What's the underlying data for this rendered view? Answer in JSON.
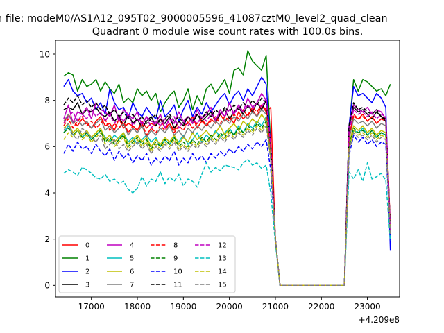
{
  "suptitle": "n file: modeM0/AS1A12_095T02_9000005596_41087cztM0_level2_quad_clean",
  "chart_data": {
    "type": "line",
    "title": "Quadrant 0 module wise count rates with 100.0s bins.",
    "xlabel": "",
    "ylabel": "",
    "x_offset_label": "+4.209e8",
    "xlim": [
      16220,
      23700
    ],
    "ylim": [
      -0.5,
      10.6
    ],
    "xticks": [
      17000,
      18000,
      19000,
      20000,
      21000,
      22000,
      23000
    ],
    "xtick_labels": [
      "17000",
      "18000",
      "19000",
      "20000",
      "21000",
      "22000",
      "23000"
    ],
    "yticks": [
      0,
      2,
      4,
      6,
      8,
      10
    ],
    "ytick_labels": [
      "0",
      "2",
      "4",
      "6",
      "8",
      "10"
    ],
    "grid": false,
    "legend_position": "lower-left",
    "x_seg1": [
      16400,
      16500,
      16600,
      16700,
      16800,
      16900,
      17000,
      17100,
      17200,
      17300,
      17400,
      17500,
      17600,
      17700,
      17800,
      17900,
      18000,
      18100,
      18200,
      18300,
      18400,
      18500,
      18600,
      18700,
      18800,
      18900,
      19000,
      19100,
      19200,
      19300,
      19400,
      19500,
      19600,
      19700,
      19800,
      19900,
      20000,
      20100,
      20200,
      20300,
      20400,
      20500,
      20600,
      20700,
      20800,
      20900,
      21000,
      21100
    ],
    "x_seg2": [
      22500,
      22600,
      22700,
      22800,
      22900,
      23000,
      23100,
      23200,
      23300,
      23400,
      23500
    ],
    "series": [
      {
        "name": "0",
        "color": "#ff0000",
        "dash": "solid",
        "values": [
          7.0,
          7.4,
          7.1,
          6.9,
          7.2,
          7.0,
          6.8,
          7.1,
          7.3,
          6.9,
          7.0,
          6.7,
          7.2,
          6.8,
          7.0,
          6.9,
          6.7,
          7.1,
          6.8,
          7.0,
          6.9,
          7.2,
          6.8,
          7.0,
          6.7,
          7.1,
          6.9,
          7.0,
          7.3,
          6.8,
          7.1,
          6.9,
          7.2,
          7.0,
          7.4,
          7.1,
          7.3,
          7.0,
          7.5,
          7.2,
          7.4,
          7.6,
          7.3,
          7.8,
          7.5,
          7.7,
          2.0,
          0
        ],
        "values2": [
          0,
          6.5,
          7.3,
          7.2,
          7.4,
          7.1,
          7.3,
          7.0,
          7.2,
          7.3,
          2.6
        ]
      },
      {
        "name": "1",
        "color": "#008000",
        "dash": "solid",
        "values": [
          9.05,
          9.2,
          9.1,
          8.4,
          8.9,
          8.6,
          8.7,
          8.9,
          8.4,
          8.8,
          8.5,
          8.3,
          8.7,
          7.9,
          8.1,
          7.9,
          8.5,
          8.2,
          8.4,
          8.0,
          8.3,
          7.5,
          7.9,
          8.2,
          8.4,
          7.7,
          8.0,
          8.5,
          7.6,
          8.2,
          7.8,
          8.5,
          8.7,
          8.3,
          8.6,
          8.9,
          8.3,
          9.3,
          9.4,
          9.1,
          10.15,
          9.7,
          9.5,
          9.3,
          9.95,
          6.0,
          2.0,
          0
        ],
        "values2": [
          0,
          6.8,
          8.9,
          8.4,
          8.9,
          8.8,
          8.6,
          8.4,
          8.5,
          8.2,
          8.7
        ]
      },
      {
        "name": "2",
        "color": "#0000ff",
        "dash": "solid",
        "values": [
          8.6,
          8.9,
          8.4,
          8.2,
          8.3,
          7.9,
          8.1,
          7.6,
          7.9,
          7.4,
          8.5,
          7.9,
          7.6,
          7.7,
          7.2,
          7.9,
          7.5,
          7.3,
          7.7,
          7.4,
          7.2,
          8.0,
          7.3,
          7.5,
          7.8,
          7.1,
          7.6,
          8.0,
          7.3,
          7.7,
          7.4,
          7.9,
          7.5,
          7.8,
          8.1,
          8.3,
          7.8,
          8.2,
          8.4,
          8.0,
          8.5,
          8.2,
          8.6,
          9.0,
          8.7,
          6.0,
          2.0,
          0
        ],
        "values2": [
          0,
          6.9,
          8.6,
          8.2,
          8.3,
          8.1,
          7.9,
          8.3,
          8.1,
          7.7,
          1.5
        ]
      },
      {
        "name": "3",
        "color": "#000000",
        "dash": "solid",
        "values": [
          7.6,
          7.7,
          7.6,
          7.9,
          7.4,
          7.6,
          7.5,
          7.7,
          7.4,
          7.3,
          7.5,
          7.1,
          7.3,
          6.9,
          7.4,
          7.0,
          7.2,
          6.8,
          7.1,
          7.3,
          6.9,
          7.2,
          7.0,
          7.3,
          6.8,
          7.1,
          6.9,
          7.3,
          7.0,
          7.4,
          7.1,
          7.3,
          7.5,
          7.1,
          7.4,
          7.6,
          7.2,
          7.5,
          7.7,
          7.4,
          7.8,
          7.5,
          7.9,
          7.6,
          8.0,
          6.0,
          2.0,
          0
        ],
        "values2": [
          0,
          6.8,
          7.7,
          7.5,
          7.6,
          7.4,
          7.2,
          7.5,
          7.3,
          7.1,
          2.5
        ]
      },
      {
        "name": "4",
        "color": "#bf00bf",
        "dash": "solid",
        "values": [
          7.2,
          7.8,
          7.0,
          7.5,
          7.4,
          7.7,
          7.2,
          7.9,
          7.6,
          7.5,
          7.3,
          7.8,
          7.1,
          7.6,
          7.4,
          7.2,
          7.5,
          6.9,
          7.3,
          7.1,
          7.0,
          7.4,
          6.8,
          7.2,
          7.0,
          7.5,
          7.1,
          7.3,
          7.0,
          7.6,
          7.2,
          7.4,
          7.7,
          7.1,
          7.6,
          7.3,
          7.9,
          7.4,
          7.8,
          7.5,
          8.1,
          7.7,
          7.9,
          8.3,
          8.0,
          6.0,
          2.0,
          0
        ],
        "values2": [
          0,
          6.9,
          7.8,
          7.6,
          7.5,
          7.7,
          7.4,
          7.6,
          7.5,
          7.2,
          2.4
        ]
      },
      {
        "name": "5",
        "color": "#00bfbf",
        "dash": "solid",
        "values": [
          6.6,
          6.9,
          6.5,
          6.7,
          6.4,
          6.6,
          6.3,
          6.5,
          6.7,
          6.4,
          6.2,
          6.5,
          6.3,
          6.6,
          6.2,
          6.4,
          6.1,
          6.3,
          6.5,
          6.2,
          6.4,
          6.0,
          6.3,
          6.1,
          6.4,
          6.2,
          6.5,
          6.1,
          6.3,
          6.6,
          6.2,
          6.5,
          6.3,
          6.7,
          6.4,
          6.6,
          6.8,
          6.5,
          6.9,
          6.6,
          7.0,
          6.8,
          7.1,
          6.9,
          7.3,
          5.5,
          2.0,
          0
        ],
        "values2": [
          0,
          6.0,
          6.7,
          6.6,
          6.8,
          6.5,
          6.7,
          6.4,
          6.6,
          6.5,
          2.2
        ]
      },
      {
        "name": "6",
        "color": "#bfbf00",
        "dash": "solid",
        "values": [
          6.8,
          7.0,
          6.6,
          6.8,
          6.5,
          6.7,
          6.4,
          6.6,
          6.8,
          6.3,
          6.5,
          6.2,
          6.4,
          6.6,
          6.1,
          6.3,
          6.5,
          6.2,
          6.4,
          6.0,
          6.3,
          6.1,
          6.4,
          6.2,
          6.5,
          6.1,
          6.4,
          6.2,
          6.6,
          6.3,
          6.5,
          6.7,
          6.4,
          6.6,
          6.9,
          6.5,
          6.8,
          7.0,
          6.7,
          7.1,
          6.9,
          7.2,
          7.0,
          7.4,
          7.1,
          5.6,
          2.0,
          0
        ],
        "values2": [
          0,
          6.1,
          6.9,
          6.7,
          6.9,
          6.6,
          6.8,
          6.5,
          6.7,
          6.6,
          2.3
        ]
      },
      {
        "name": "7",
        "color": "#7f7f7f",
        "dash": "solid",
        "values": [
          7.1,
          7.4,
          7.0,
          7.2,
          6.9,
          7.1,
          6.8,
          7.0,
          7.2,
          6.7,
          6.9,
          6.6,
          6.8,
          7.0,
          6.5,
          6.8,
          6.6,
          6.9,
          6.4,
          6.7,
          6.5,
          6.8,
          6.6,
          6.9,
          6.5,
          6.7,
          6.4,
          6.8,
          6.6,
          6.9,
          6.7,
          7.0,
          6.8,
          7.1,
          6.9,
          7.2,
          7.0,
          7.3,
          7.1,
          7.4,
          7.2,
          7.5,
          7.3,
          7.6,
          7.4,
          5.8,
          2.0,
          0
        ],
        "values2": [
          0,
          6.3,
          7.2,
          7.0,
          7.1,
          6.9,
          7.1,
          6.8,
          7.0,
          6.9,
          2.4
        ]
      },
      {
        "name": "8",
        "color": "#ff0000",
        "dash": "dashed",
        "values": [
          6.9,
          7.2,
          6.8,
          7.1,
          7.3,
          6.9,
          7.1,
          6.8,
          7.0,
          7.2,
          6.7,
          7.0,
          6.8,
          7.1,
          6.6,
          6.9,
          6.7,
          7.0,
          6.5,
          6.8,
          6.6,
          6.9,
          6.7,
          7.0,
          6.6,
          6.9,
          6.7,
          7.1,
          6.8,
          7.0,
          7.2,
          6.9,
          7.1,
          7.3,
          7.0,
          7.3,
          7.1,
          7.4,
          7.2,
          7.6,
          7.3,
          7.7,
          7.5,
          7.8,
          7.6,
          5.9,
          2.0,
          0
        ],
        "values2": [
          0,
          6.4,
          7.4,
          7.2,
          7.3,
          7.1,
          7.3,
          7.0,
          7.2,
          7.1,
          2.5
        ]
      },
      {
        "name": "9",
        "color": "#008000",
        "dash": "dashed",
        "values": [
          6.6,
          6.8,
          6.5,
          6.7,
          6.4,
          6.6,
          6.3,
          6.5,
          6.7,
          6.2,
          6.4,
          6.1,
          6.3,
          6.5,
          6.0,
          6.2,
          6.4,
          6.1,
          6.3,
          5.9,
          6.2,
          6.0,
          6.3,
          6.1,
          6.4,
          6.0,
          6.2,
          6.0,
          6.3,
          6.1,
          6.4,
          6.2,
          6.5,
          6.3,
          6.6,
          6.4,
          6.7,
          6.5,
          6.8,
          6.6,
          6.9,
          6.7,
          7.0,
          6.8,
          7.1,
          5.5,
          2.0,
          0
        ],
        "values2": [
          0,
          6.0,
          6.8,
          6.6,
          6.7,
          6.5,
          6.7,
          6.4,
          6.6,
          6.5,
          2.2
        ]
      },
      {
        "name": "10",
        "color": "#0000ff",
        "dash": "dashed",
        "values": [
          5.7,
          6.1,
          5.8,
          6.2,
          5.9,
          6.0,
          5.7,
          6.1,
          5.8,
          5.6,
          5.9,
          5.4,
          5.8,
          5.5,
          5.7,
          5.3,
          5.6,
          5.4,
          5.7,
          5.2,
          5.5,
          5.3,
          5.6,
          5.4,
          5.8,
          5.2,
          5.5,
          5.3,
          5.7,
          5.4,
          5.6,
          5.3,
          5.7,
          5.5,
          5.8,
          5.6,
          5.9,
          5.7,
          6.0,
          5.8,
          6.1,
          5.9,
          6.2,
          6.0,
          6.3,
          5.0,
          2.0,
          0
        ],
        "values2": [
          0,
          5.6,
          6.5,
          6.2,
          6.4,
          6.1,
          6.3,
          6.0,
          6.2,
          6.1,
          2.0
        ]
      },
      {
        "name": "11",
        "color": "#000000",
        "dash": "dashed",
        "values": [
          7.8,
          8.1,
          7.9,
          8.2,
          7.8,
          8.0,
          7.7,
          7.9,
          7.6,
          7.8,
          7.4,
          7.6,
          7.3,
          7.5,
          7.2,
          7.4,
          7.1,
          7.3,
          7.0,
          7.2,
          7.4,
          7.0,
          7.2,
          7.4,
          7.1,
          7.3,
          7.0,
          7.3,
          7.1,
          7.4,
          7.2,
          7.5,
          7.3,
          7.6,
          7.4,
          7.7,
          7.5,
          7.8,
          7.6,
          7.9,
          7.7,
          8.0,
          7.8,
          8.1,
          7.9,
          6.1,
          2.0,
          0
        ],
        "values2": [
          0,
          6.9,
          7.9,
          7.6,
          7.7,
          7.5,
          7.4,
          7.6,
          7.3,
          7.2,
          2.5
        ]
      },
      {
        "name": "12",
        "color": "#bf00bf",
        "dash": "dashed",
        "values": [
          7.0,
          7.3,
          7.5,
          7.1,
          7.4,
          7.2,
          7.6,
          7.3,
          7.5,
          7.1,
          7.4,
          7.0,
          7.3,
          7.1,
          7.4,
          6.9,
          7.2,
          7.0,
          7.3,
          6.8,
          7.1,
          6.9,
          7.2,
          7.0,
          7.3,
          6.8,
          7.1,
          6.9,
          7.2,
          7.0,
          7.3,
          7.1,
          7.4,
          7.2,
          7.5,
          7.3,
          7.6,
          7.4,
          7.7,
          7.5,
          7.8,
          7.6,
          7.9,
          7.7,
          8.1,
          6.0,
          2.0,
          0
        ],
        "values2": [
          0,
          6.6,
          7.6,
          7.4,
          7.5,
          7.3,
          7.5,
          7.2,
          7.4,
          7.3,
          2.4
        ]
      },
      {
        "name": "13",
        "color": "#00bfbf",
        "dash": "dashed",
        "values": [
          4.85,
          5.0,
          4.9,
          4.75,
          5.1,
          5.0,
          4.85,
          4.65,
          4.6,
          4.8,
          4.5,
          4.6,
          4.4,
          4.5,
          4.15,
          4.0,
          4.2,
          4.7,
          4.3,
          4.6,
          4.5,
          4.9,
          4.4,
          4.7,
          4.5,
          4.8,
          4.3,
          4.6,
          4.5,
          4.25,
          4.8,
          5.3,
          4.9,
          5.1,
          4.95,
          5.2,
          5.15,
          5.1,
          5.0,
          5.3,
          5.45,
          5.2,
          5.3,
          5.05,
          5.2,
          4.0,
          1.8,
          0
        ],
        "values2": [
          0,
          4.9,
          4.6,
          5.0,
          4.5,
          5.3,
          4.6,
          4.7,
          4.85,
          4.55,
          1.9
        ]
      },
      {
        "name": "14",
        "color": "#bfbf00",
        "dash": "dashed",
        "values": [
          6.3,
          6.6,
          6.4,
          6.7,
          6.3,
          6.5,
          6.2,
          6.4,
          6.6,
          6.1,
          6.3,
          6.0,
          6.2,
          6.4,
          5.9,
          6.1,
          6.3,
          6.0,
          6.2,
          5.8,
          6.1,
          5.9,
          6.2,
          6.0,
          6.3,
          5.9,
          6.1,
          5.9,
          6.2,
          6.0,
          6.3,
          6.1,
          6.4,
          6.2,
          6.5,
          6.3,
          6.6,
          6.4,
          6.7,
          6.5,
          6.8,
          6.6,
          6.9,
          6.7,
          7.0,
          5.5,
          2.0,
          0
        ],
        "values2": [
          0,
          5.9,
          6.7,
          6.5,
          6.6,
          6.4,
          6.6,
          6.3,
          6.5,
          6.4,
          2.2
        ]
      },
      {
        "name": "15",
        "color": "#7f7f7f",
        "dash": "dashed",
        "values": [
          6.7,
          7.0,
          6.5,
          6.3,
          6.8,
          6.6,
          6.4,
          6.2,
          6.5,
          5.9,
          6.1,
          6.3,
          5.9,
          6.1,
          5.8,
          6.0,
          6.2,
          5.9,
          6.1,
          5.7,
          6.0,
          5.8,
          6.1,
          5.9,
          6.2,
          5.8,
          6.0,
          5.8,
          6.1,
          5.9,
          6.2,
          6.0,
          6.3,
          6.1,
          6.4,
          6.2,
          6.5,
          6.3,
          6.6,
          6.4,
          6.7,
          6.5,
          6.8,
          6.6,
          6.9,
          5.4,
          2.0,
          0
        ],
        "values2": [
          0,
          5.8,
          6.6,
          6.4,
          6.5,
          6.3,
          6.5,
          6.2,
          6.4,
          6.3,
          2.2
        ]
      }
    ]
  }
}
